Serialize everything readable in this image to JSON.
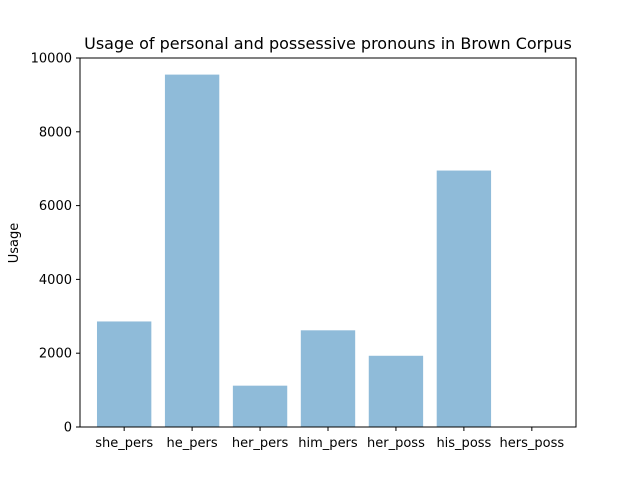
{
  "chart_data": {
    "type": "bar",
    "title": "Usage of personal and possessive pronouns in Brown Corpus",
    "xlabel": "",
    "ylabel": "Usage",
    "categories": [
      "she_pers",
      "he_pers",
      "her_pers",
      "him_pers",
      "her_poss",
      "his_poss",
      "hers_poss"
    ],
    "values": [
      2860,
      9550,
      1120,
      2620,
      1930,
      6950,
      8
    ],
    "ylim": [
      0,
      10000
    ],
    "yticks": [
      0,
      2000,
      4000,
      6000,
      8000,
      10000
    ],
    "ytick_labels": [
      "0",
      "2000",
      "4000",
      "6000",
      "8000",
      "10000"
    ],
    "grid": false,
    "bar_color": "#1f77b4",
    "bar_opacity": 0.5
  }
}
